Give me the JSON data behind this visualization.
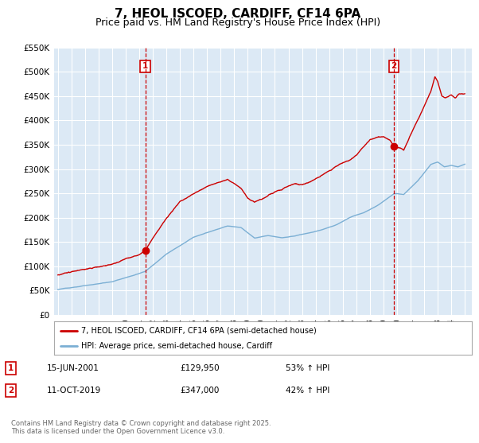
{
  "title": "7, HEOL ISCOED, CARDIFF, CF14 6PA",
  "subtitle": "Price paid vs. HM Land Registry's House Price Index (HPI)",
  "legend_line1": "7, HEOL ISCOED, CARDIFF, CF14 6PA (semi-detached house)",
  "legend_line2": "HPI: Average price, semi-detached house, Cardiff",
  "sale1_label": "1",
  "sale1_date": "15-JUN-2001",
  "sale1_price": "£129,950",
  "sale1_hpi": "53% ↑ HPI",
  "sale2_label": "2",
  "sale2_date": "11-OCT-2019",
  "sale2_price": "£347,000",
  "sale2_hpi": "42% ↑ HPI",
  "footnote": "Contains HM Land Registry data © Crown copyright and database right 2025.\nThis data is licensed under the Open Government Licence v3.0.",
  "ylim": [
    0,
    550000
  ],
  "yticks": [
    0,
    50000,
    100000,
    150000,
    200000,
    250000,
    300000,
    350000,
    400000,
    450000,
    500000,
    550000
  ],
  "ytick_labels": [
    "£0",
    "£50K",
    "£100K",
    "£150K",
    "£200K",
    "£250K",
    "£300K",
    "£350K",
    "£400K",
    "£450K",
    "£500K",
    "£550K"
  ],
  "sale1_year": 2001.45,
  "sale2_year": 2019.78,
  "sale1_value": 129950,
  "sale2_value": 347000,
  "line_color_red": "#cc0000",
  "line_color_blue": "#7bafd4",
  "dashed_color": "#cc0000",
  "background_color": "#ffffff",
  "plot_bg_color": "#dce9f5",
  "grid_color": "#ffffff",
  "title_fontsize": 11,
  "subtitle_fontsize": 9,
  "xlabel_years": [
    1995,
    1996,
    1997,
    1998,
    1999,
    2000,
    2001,
    2002,
    2003,
    2004,
    2005,
    2006,
    2007,
    2008,
    2009,
    2010,
    2011,
    2012,
    2013,
    2014,
    2015,
    2016,
    2017,
    2018,
    2019,
    2020,
    2021,
    2022,
    2023,
    2024,
    2025
  ]
}
